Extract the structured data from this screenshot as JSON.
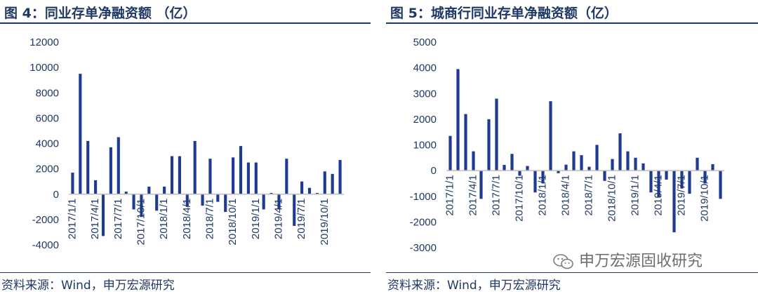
{
  "charts": [
    {
      "title": "图 4：同业存单净融资额 （亿）",
      "source": "资料来源：Wind，申万宏源研究"
    },
    {
      "title": "图 5：城商行同业存单净融资额（亿）",
      "source": "资料来源：Wind，申万宏源研究"
    }
  ],
  "watermark": {
    "text": "申万宏源固收研究",
    "icon": "wechat-icon"
  },
  "colors": {
    "bar": "#1f3a93",
    "text": "#1f3864",
    "axis": "#bfbfbf"
  },
  "chart_data": [
    {
      "type": "bar",
      "title": "图 4：同业存单净融资额 （亿）",
      "ylim": [
        -4000,
        12000
      ],
      "yticks": [
        -4000,
        -2000,
        0,
        2000,
        4000,
        6000,
        8000,
        10000,
        12000
      ],
      "xticklabels": [
        "2017/1/1",
        "2017/4/1",
        "2017/7/1",
        "2017/10/1",
        "2018/1/1",
        "2018/4/1",
        "2018/7/1",
        "2018/10/1",
        "2019/1/1",
        "2019/4/1",
        "2019/7/1",
        "2019/10/1"
      ],
      "categories": [
        "2017/1",
        "2017/2",
        "2017/3",
        "2017/4",
        "2017/5",
        "2017/6",
        "2017/7",
        "2017/8",
        "2017/9",
        "2017/10",
        "2017/11",
        "2017/12",
        "2018/1",
        "2018/2",
        "2018/3",
        "2018/4",
        "2018/5",
        "2018/6",
        "2018/7",
        "2018/8",
        "2018/9",
        "2018/10",
        "2018/11",
        "2018/12",
        "2019/1",
        "2019/2",
        "2019/3",
        "2019/4",
        "2019/5",
        "2019/6",
        "2019/7",
        "2019/8",
        "2019/9",
        "2019/10",
        "2019/11",
        "2019/12"
      ],
      "values": [
        1700,
        9500,
        4200,
        1100,
        -3300,
        3700,
        4500,
        200,
        -1200,
        -1800,
        600,
        -1300,
        600,
        3000,
        3000,
        -1000,
        4200,
        -900,
        2800,
        -600,
        -1400,
        2900,
        3800,
        2500,
        2500,
        -1200,
        100,
        -1200,
        2800,
        -2500,
        1000,
        500,
        100,
        1800,
        1600,
        2700
      ]
    },
    {
      "type": "bar",
      "title": "图 5：城商行同业存单净融资额（亿）",
      "ylim": [
        -3000,
        5000
      ],
      "yticks": [
        -3000,
        -2000,
        -1000,
        0,
        1000,
        2000,
        3000,
        4000,
        5000
      ],
      "xticklabels": [
        "2017/1/1",
        "2017/4/1",
        "2017/7/1",
        "2017/10/1",
        "2018/1/1",
        "2018/4/1",
        "2018/7/1",
        "2018/10/1",
        "2019/1/1",
        "2019/4/1",
        "2019/7/1",
        "2019/10/1"
      ],
      "categories": [
        "2017/1",
        "2017/2",
        "2017/3",
        "2017/4",
        "2017/5",
        "2017/6",
        "2017/7",
        "2017/8",
        "2017/9",
        "2017/10",
        "2017/11",
        "2017/12",
        "2018/1",
        "2018/2",
        "2018/3",
        "2018/4",
        "2018/5",
        "2018/6",
        "2018/7",
        "2018/8",
        "2018/9",
        "2018/10",
        "2018/11",
        "2018/12",
        "2019/1",
        "2019/2",
        "2019/3",
        "2019/4",
        "2019/5",
        "2019/6",
        "2019/7",
        "2019/8",
        "2019/9",
        "2019/10",
        "2019/11",
        "2019/12"
      ],
      "values": [
        1350,
        3950,
        2200,
        750,
        -1100,
        2000,
        2800,
        220,
        650,
        -200,
        180,
        -850,
        -500,
        2700,
        -100,
        230,
        750,
        600,
        150,
        1000,
        -400,
        450,
        1450,
        750,
        500,
        280,
        -850,
        -1050,
        -350,
        -2400,
        -700,
        -900,
        500,
        -500,
        250,
        -1100
      ]
    }
  ]
}
